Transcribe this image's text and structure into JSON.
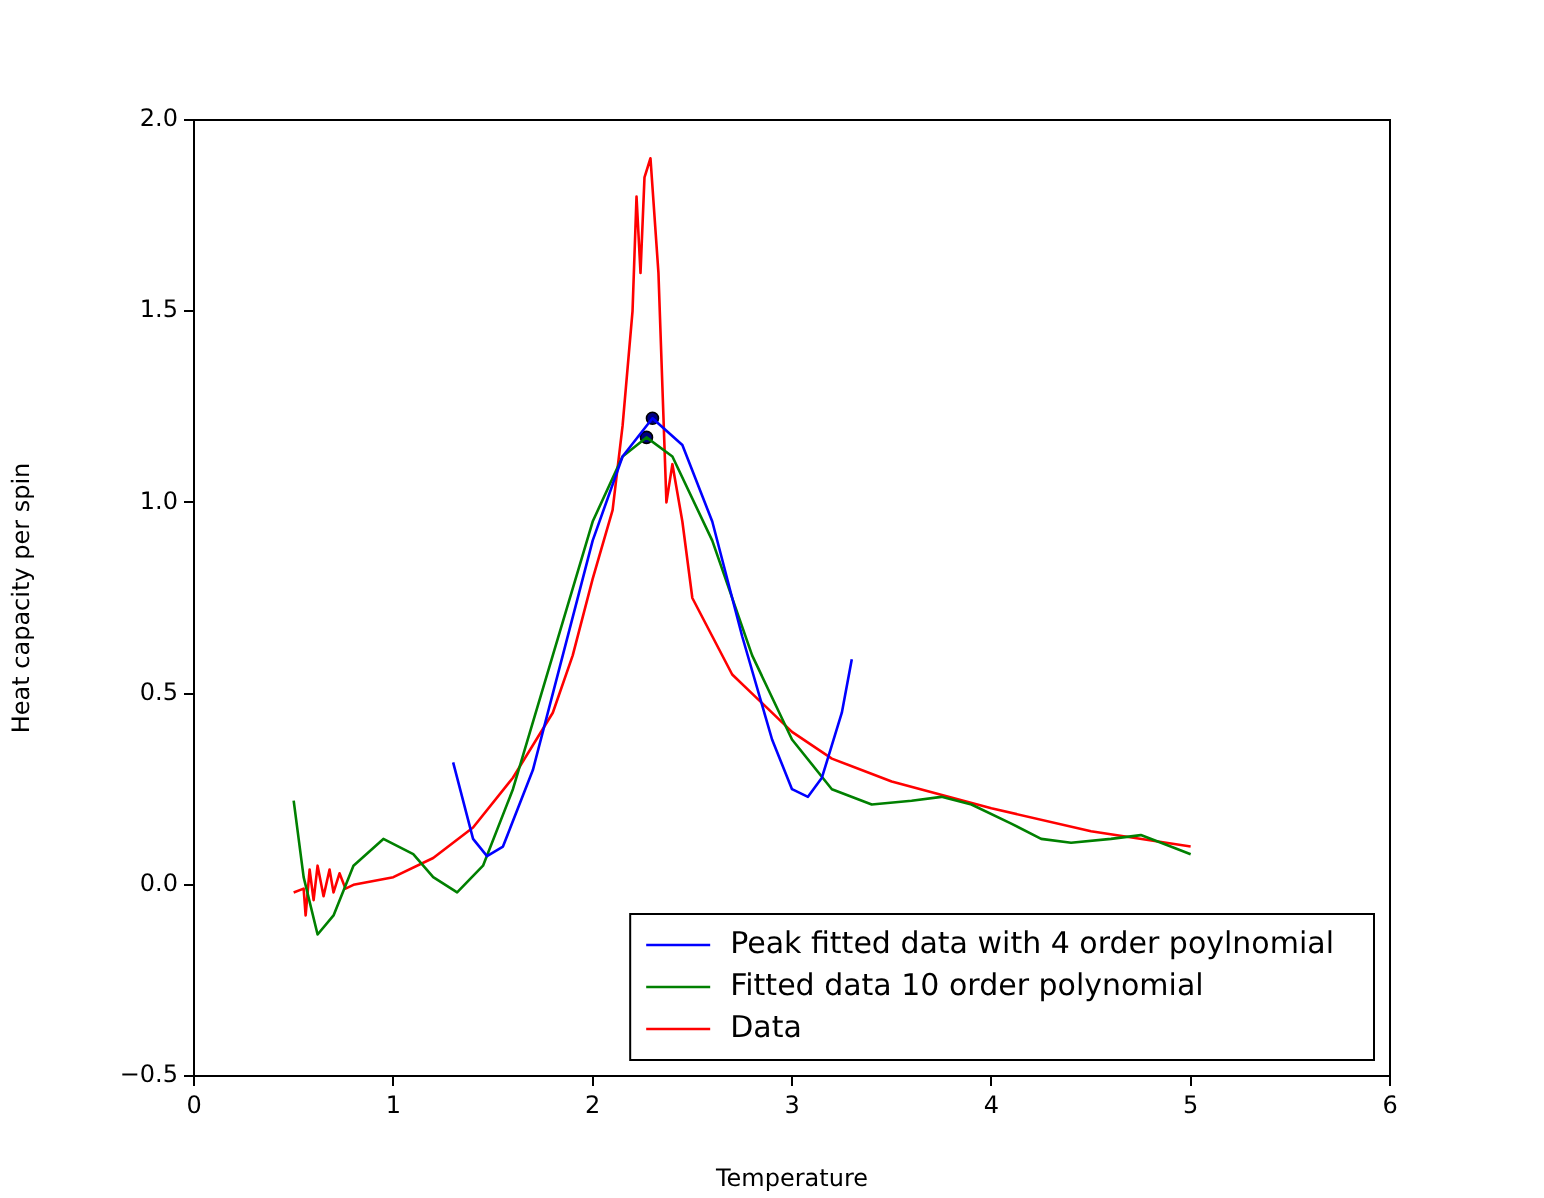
{
  "chart_data": {
    "type": "line",
    "xlabel": "Temperature",
    "ylabel": "Heat capacity per spin",
    "xlim": [
      0,
      6
    ],
    "xticks": [
      0,
      1,
      2,
      3,
      4,
      5,
      6
    ],
    "ylim": [
      -0.5,
      2.0
    ],
    "yticks": [
      {
        "value": -0.5,
        "label": "−0.5"
      },
      {
        "value": 0,
        "label": "0.0"
      },
      {
        "value": 0.5,
        "label": "0.5"
      },
      {
        "value": 1,
        "label": "1.0"
      },
      {
        "value": 1.5,
        "label": "1.5"
      },
      {
        "value": 2,
        "label": "2.0"
      }
    ],
    "grid": false,
    "legend": "bottom right",
    "marker": "none",
    "line_style": "solid",
    "series": [
      {
        "name": "Peak fitted data with 4 order poylnomial",
        "color": "#0000ff",
        "x": [
          1.3,
          1.4,
          1.47,
          1.55,
          1.7,
          1.85,
          2.0,
          2.15,
          2.3,
          2.45,
          2.6,
          2.75,
          2.9,
          3.0,
          3.08,
          3.15,
          3.25,
          3.3
        ],
        "values": [
          0.32,
          0.12,
          0.075,
          0.1,
          0.3,
          0.6,
          0.9,
          1.12,
          1.22,
          1.15,
          0.95,
          0.65,
          0.38,
          0.25,
          0.23,
          0.28,
          0.45,
          0.59
        ]
      },
      {
        "name": "Fitted data 10 order polynomial",
        "color": "#008000",
        "x": [
          0.5,
          0.55,
          0.62,
          0.7,
          0.8,
          0.95,
          1.1,
          1.2,
          1.32,
          1.45,
          1.6,
          1.8,
          2.0,
          2.15,
          2.27,
          2.4,
          2.6,
          2.8,
          3.0,
          3.2,
          3.4,
          3.6,
          3.75,
          3.9,
          4.1,
          4.25,
          4.4,
          4.6,
          4.75,
          4.9,
          5.0
        ],
        "values": [
          0.22,
          0.02,
          -0.13,
          -0.08,
          0.05,
          0.12,
          0.08,
          0.02,
          -0.02,
          0.05,
          0.25,
          0.6,
          0.95,
          1.12,
          1.17,
          1.12,
          0.9,
          0.6,
          0.38,
          0.25,
          0.21,
          0.22,
          0.23,
          0.21,
          0.16,
          0.12,
          0.11,
          0.12,
          0.13,
          0.1,
          0.08
        ]
      },
      {
        "name": "Data",
        "color": "#ff0000",
        "x": [
          0.5,
          0.55,
          0.56,
          0.58,
          0.6,
          0.62,
          0.65,
          0.68,
          0.7,
          0.73,
          0.76,
          0.8,
          0.9,
          1.0,
          1.2,
          1.4,
          1.6,
          1.8,
          1.9,
          2.0,
          2.1,
          2.15,
          2.2,
          2.22,
          2.24,
          2.26,
          2.29,
          2.31,
          2.33,
          2.35,
          2.37,
          2.4,
          2.45,
          2.5,
          2.6,
          2.7,
          2.8,
          3.0,
          3.2,
          3.5,
          4.0,
          4.5,
          5.0
        ],
        "values": [
          -0.02,
          -0.01,
          -0.08,
          0.04,
          -0.04,
          0.05,
          -0.03,
          0.04,
          -0.02,
          0.03,
          -0.01,
          0.0,
          0.01,
          0.02,
          0.07,
          0.15,
          0.28,
          0.45,
          0.6,
          0.8,
          0.98,
          1.2,
          1.5,
          1.8,
          1.6,
          1.85,
          1.9,
          1.75,
          1.6,
          1.3,
          1.0,
          1.1,
          0.95,
          0.75,
          0.65,
          0.55,
          0.5,
          0.4,
          0.33,
          0.27,
          0.2,
          0.14,
          0.1
        ]
      },
      {
        "type": "scatter",
        "marker": "circle",
        "color": "#000080",
        "x": [
          2.3
        ],
        "values": [
          1.22
        ]
      },
      {
        "type": "scatter",
        "marker": "circle",
        "color": "#000080",
        "x": [
          2.27
        ],
        "values": [
          1.17
        ]
      }
    ]
  }
}
